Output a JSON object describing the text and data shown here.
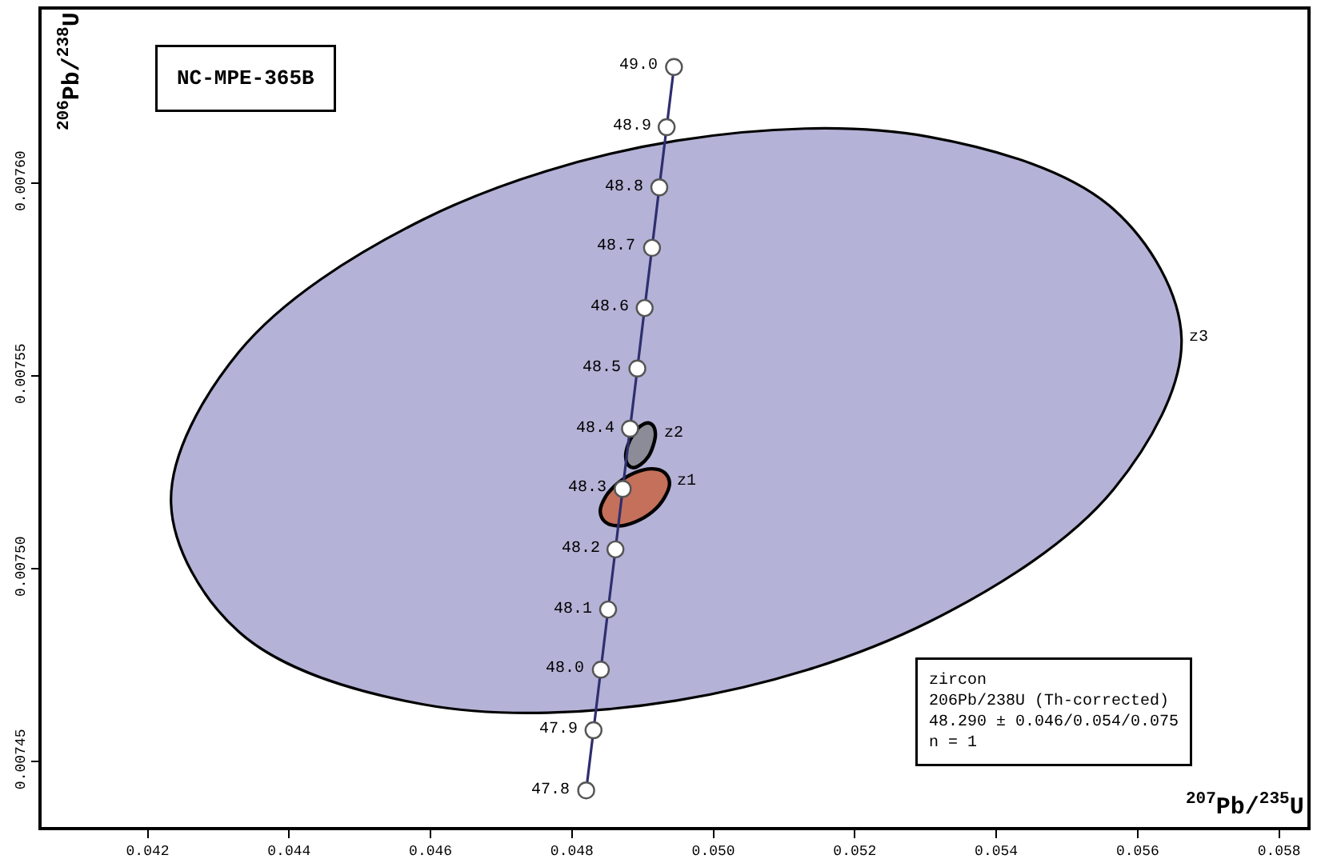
{
  "chart_data": {
    "type": "line",
    "xlabel": "$^{207}$Pb/$^{235}$U",
    "ylabel": "$^{206}$Pb/$^{238}$U",
    "xlim": [
      0.0405,
      0.0584
    ],
    "ylim": [
      0.007433,
      0.007645
    ],
    "xticks": [
      0.042,
      0.044,
      0.046,
      0.048,
      {
        "value": 0.05,
        "label": "0.050"
      },
      0.052,
      0.054,
      0.056,
      0.058
    ],
    "yticks": [
      {
        "value": 0.00745,
        "label": "0.00745"
      },
      {
        "value": 0.0075,
        "label": "0.00750"
      },
      {
        "value": 0.00755,
        "label": "0.00755"
      },
      {
        "value": 0.0076,
        "label": "0.00760"
      }
    ],
    "series": [
      {
        "name": "z3",
        "type": "area",
        "color": "#b4b2d6",
        "x": [
          0.05662,
          0.05566,
          0.05305,
          0.04948,
          0.0459,
          0.04329,
          0.04233,
          0.04329,
          0.0459,
          0.04948,
          0.05305,
          0.05566,
          0.05662
        ],
        "values": [
          0.0075597,
          0.0075206,
          0.0074862,
          0.0074658,
          0.0074648,
          0.0074836,
          0.0075171,
          0.0075562,
          0.0075906,
          0.007611,
          0.007612,
          0.0075932,
          0.0075597
        ]
      },
      {
        "name": "z2",
        "type": "area",
        "color": "#8c8c98",
        "x": [
          0.04918,
          0.04915,
          0.04908,
          0.04897,
          0.04887,
          0.04879,
          0.04876,
          0.04879,
          0.04887,
          0.04897,
          0.04908,
          0.04915,
          0.04918
        ],
        "values": [
          0.0075349,
          0.007532,
          0.0075291,
          0.007527,
          0.0075262,
          0.007527,
          0.0075291,
          0.007532,
          0.0075349,
          0.007537,
          0.0075378,
          0.007537,
          0.0075349
        ]
      },
      {
        "name": "z1",
        "type": "area",
        "color": "#c4705a",
        "x": [
          0.04938,
          0.04931,
          0.04914,
          0.04889,
          0.04865,
          0.04847,
          0.0484,
          0.04847,
          0.04865,
          0.04889,
          0.04914,
          0.04931,
          0.04938
        ],
        "values": [
          0.0075222,
          0.0075185,
          0.0075148,
          0.0075121,
          0.0075111,
          0.0075121,
          0.0075148,
          0.0075185,
          0.0075222,
          0.0075249,
          0.0075259,
          0.0075249,
          0.0075222
        ]
      },
      {
        "color": "#2e2e70",
        "marker": "circle",
        "x": [
          0.048201,
          0.048305,
          0.048408,
          0.048511,
          0.048615,
          0.048718,
          0.048821,
          0.048925,
          0.049028,
          0.049132,
          0.049235,
          0.049339,
          0.049443
        ],
        "values": [
          0.0074425,
          0.0074581,
          0.0074738,
          0.0074894,
          0.007505,
          0.0075207,
          0.0075363,
          0.0075519,
          0.0075676,
          0.0075832,
          0.0075989,
          0.0076145,
          0.0076301
        ]
      }
    ],
    "annotations": [
      "NC-MPE-365B",
      "zircon",
      "206Pb/238U (Th-corrected)",
      "48.290 ± 0.046/0.054/0.075",
      "n = 1",
      {
        "text": "47.8",
        "x": 0.048201,
        "y": 0.0074425
      },
      {
        "text": "47.9",
        "x": 0.048305,
        "y": 0.0074581
      },
      {
        "text": "48.0",
        "x": 0.048408,
        "y": 0.0074738
      },
      {
        "text": "48.1",
        "x": 0.048511,
        "y": 0.0074894
      },
      {
        "text": "48.2",
        "x": 0.048615,
        "y": 0.007505
      },
      {
        "text": "48.3",
        "x": 0.048718,
        "y": 0.0075207
      },
      {
        "text": "48.4",
        "x": 0.048821,
        "y": 0.0075363
      },
      {
        "text": "48.5",
        "x": 0.048925,
        "y": 0.0075519
      },
      {
        "text": "48.6",
        "x": 0.049028,
        "y": 0.0075676
      },
      {
        "text": "48.7",
        "x": 0.049132,
        "y": 0.0075832
      },
      {
        "text": "48.8",
        "x": 0.049235,
        "y": 0.0075989
      },
      {
        "text": "48.9",
        "x": 0.049339,
        "y": 0.0076145
      },
      {
        "text": "49.0",
        "x": 0.049443,
        "y": 0.0076301
      }
    ]
  }
}
